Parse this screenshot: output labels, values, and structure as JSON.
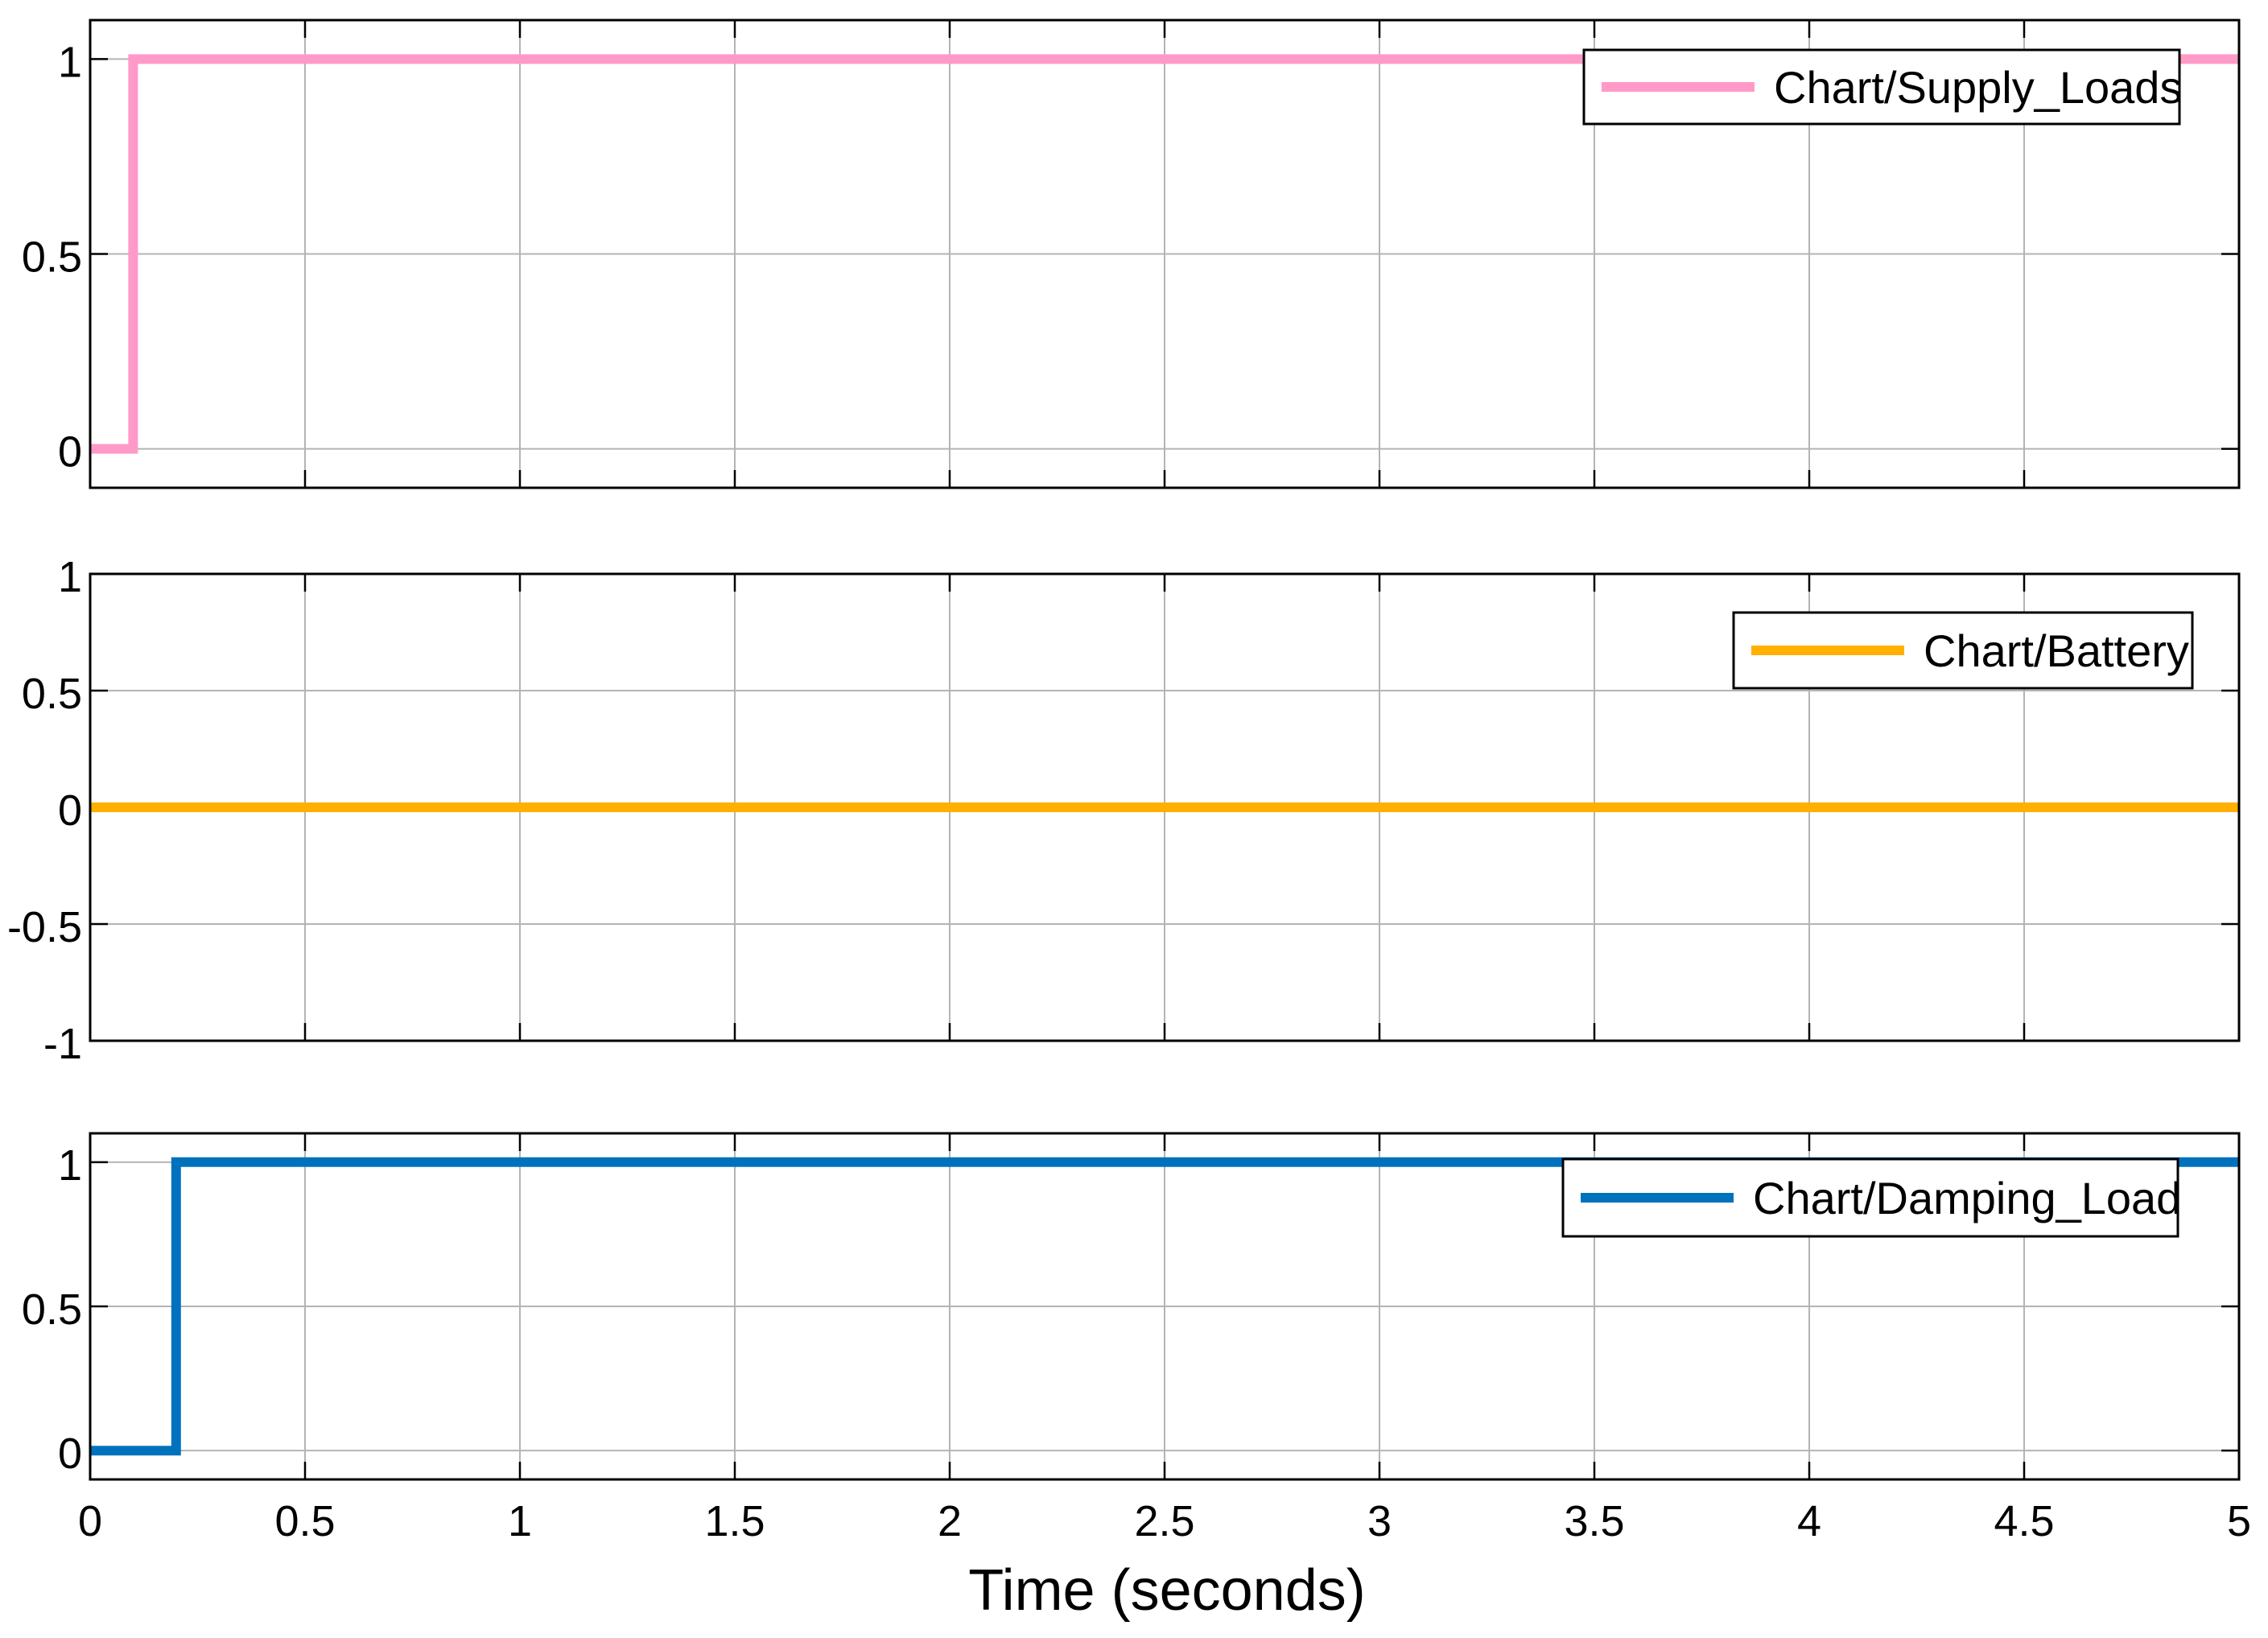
{
  "figure": {
    "xlabel": "Time (seconds)",
    "background": "#ffffff",
    "axes_color": "#000000",
    "grid_color": "#b4b4b4"
  },
  "chart_data": [
    {
      "type": "line",
      "subplot": 1,
      "xlim": [
        0,
        5
      ],
      "ylim": [
        -0.1,
        1.1
      ],
      "grid": true,
      "legend_position": "top-right",
      "x_ticks": [
        0,
        0.5,
        1,
        1.5,
        2,
        2.5,
        3,
        3.5,
        4,
        4.5,
        5
      ],
      "y_ticks": [
        0,
        0.5,
        1
      ],
      "y_tick_labels": [
        "0",
        "0.5",
        "1"
      ],
      "series": [
        {
          "name": "Chart/Supply_Loads",
          "color": "#ff9ac8",
          "step": true,
          "x": [
            0,
            0.1,
            0.1,
            5
          ],
          "y": [
            0,
            0,
            1,
            1
          ]
        }
      ]
    },
    {
      "type": "line",
      "subplot": 2,
      "xlim": [
        0,
        5
      ],
      "ylim": [
        -1,
        1
      ],
      "grid": true,
      "legend_position": "top-right",
      "x_ticks": [
        0,
        0.5,
        1,
        1.5,
        2,
        2.5,
        3,
        3.5,
        4,
        4.5,
        5
      ],
      "y_ticks": [
        -1,
        -0.5,
        0,
        0.5,
        1
      ],
      "y_tick_labels": [
        "-1",
        "-0.5",
        "0",
        "0.5",
        "1"
      ],
      "series": [
        {
          "name": "Chart/Battery",
          "color": "#ffb000",
          "step": false,
          "x": [
            0,
            5
          ],
          "y": [
            0,
            0
          ]
        }
      ]
    },
    {
      "type": "line",
      "subplot": 3,
      "xlim": [
        0,
        5
      ],
      "ylim": [
        -0.1,
        1.1
      ],
      "grid": true,
      "legend_position": "top-right",
      "x_ticks": [
        0,
        0.5,
        1,
        1.5,
        2,
        2.5,
        3,
        3.5,
        4,
        4.5,
        5
      ],
      "x_tick_labels": [
        "0",
        "0.5",
        "1",
        "1.5",
        "2",
        "2.5",
        "3",
        "3.5",
        "4",
        "4.5",
        "5"
      ],
      "y_ticks": [
        0,
        0.5,
        1
      ],
      "y_tick_labels": [
        "0",
        "0.5",
        "1"
      ],
      "series": [
        {
          "name": "Chart/Damping_Load",
          "color": "#0072bd",
          "step": true,
          "x": [
            0,
            0.2,
            0.2,
            5
          ],
          "y": [
            0,
            0,
            1,
            1
          ]
        }
      ]
    }
  ]
}
